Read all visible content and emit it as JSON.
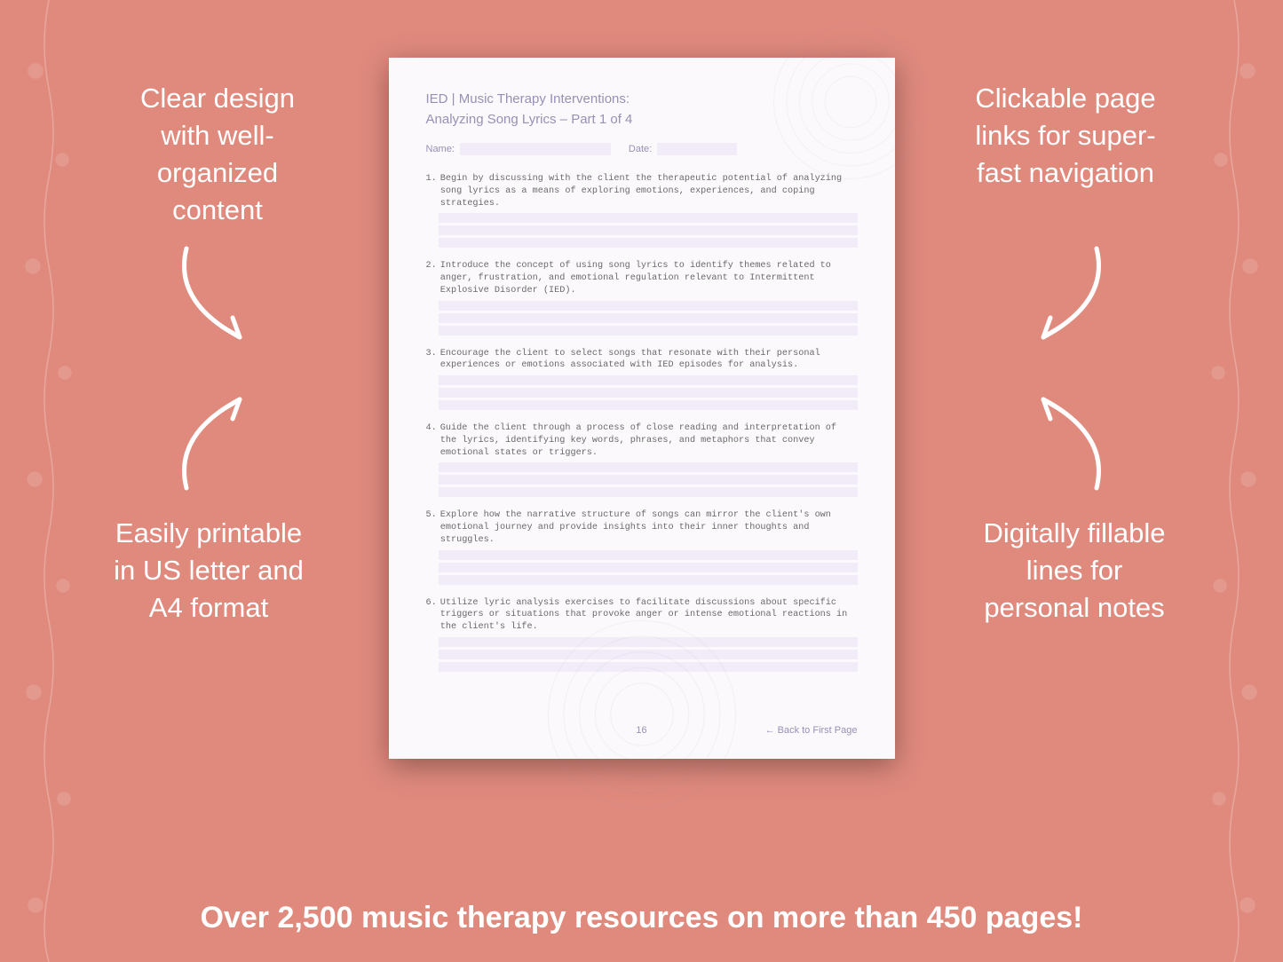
{
  "background_color": "#e08a7e",
  "text_color_white": "#ffffff",
  "callouts": {
    "top_left": "Clear design with well-organized content",
    "top_right": "Clickable page links for super-fast navigation",
    "bottom_left": "Easily printable in US letter and A4 format",
    "bottom_right": "Digitally fillable lines for personal notes"
  },
  "banner": "Over 2,500 music therapy resources on more than 450 pages!",
  "page": {
    "bg": "#fbf9fc",
    "accent": "#9a8fb5",
    "fill_bg": "#f1ecf7",
    "title_line1": "IED | Music Therapy Interventions:",
    "title_line2": "Analyzing Song Lyrics – Part 1 of 4",
    "name_label": "Name:",
    "date_label": "Date:",
    "items": [
      "Begin by discussing with the client the therapeutic potential of analyzing song lyrics as a means of exploring emotions, experiences, and coping strategies.",
      "Introduce the concept of using song lyrics to identify themes related to anger, frustration, and emotional regulation relevant to Intermittent Explosive Disorder (IED).",
      "Encourage the client to select songs that resonate with their personal experiences or emotions associated with IED episodes for analysis.",
      "Guide the client through a process of close reading and interpretation of the lyrics, identifying key words, phrases, and metaphors that convey emotional states or triggers.",
      "Explore how the narrative structure of songs can mirror the client's own emotional journey and provide insights into their inner thoughts and struggles.",
      "Utilize lyric analysis exercises to facilitate discussions about specific triggers or situations that provoke anger or intense emotional reactions in the client's life."
    ],
    "fill_lines_per_item": 3,
    "page_number": "16",
    "back_link": "← Back to First Page"
  }
}
